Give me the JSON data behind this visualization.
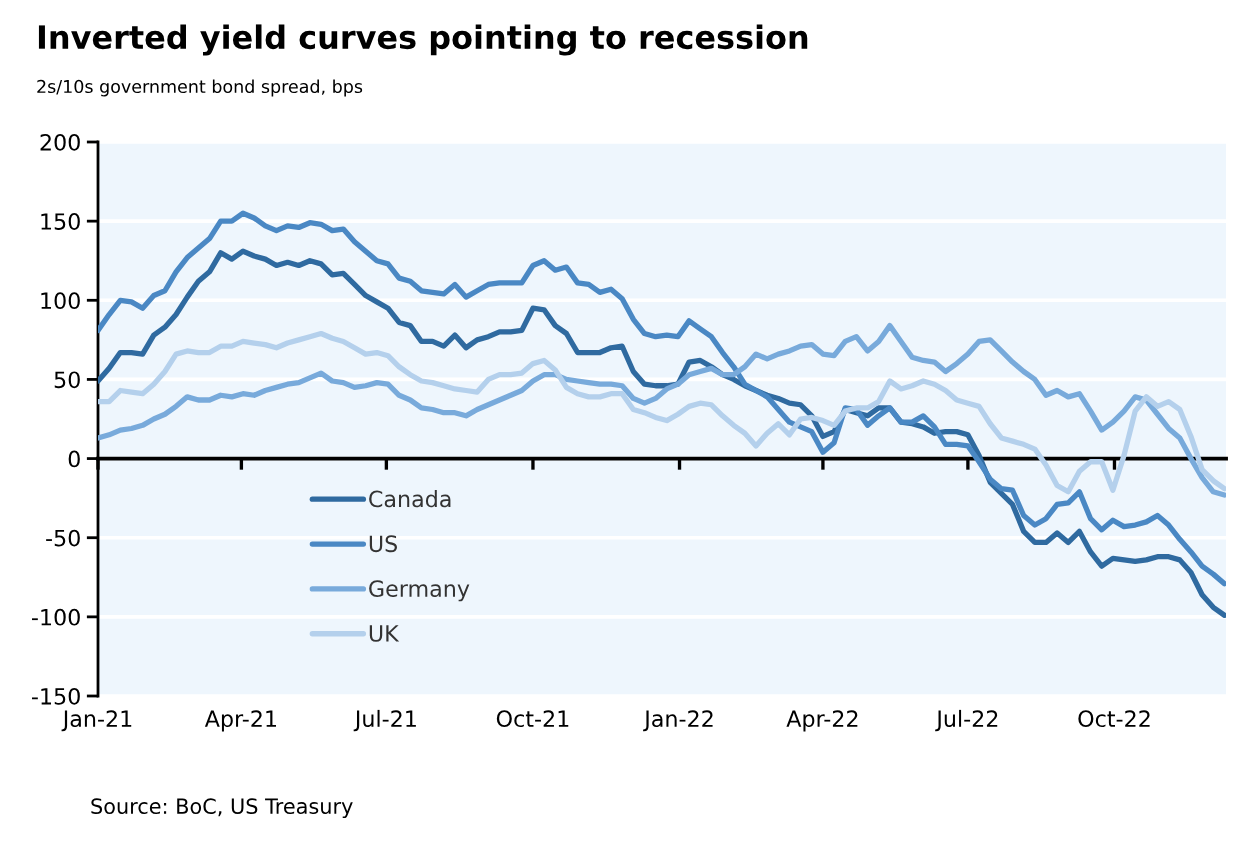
{
  "chart_data": {
    "type": "line",
    "title": "Inverted yield curves pointing to recession",
    "subtitle": "2s/10s government bond spread, bps",
    "annotations": [
      "Source: BoC, US Treasury"
    ],
    "x": [
      "2021-01-01",
      "2021-01-08",
      "2021-01-15",
      "2021-01-22",
      "2021-01-29",
      "2021-02-05",
      "2021-02-12",
      "2021-02-19",
      "2021-02-26",
      "2021-03-05",
      "2021-03-12",
      "2021-03-19",
      "2021-03-26",
      "2021-04-02",
      "2021-04-09",
      "2021-04-16",
      "2021-04-23",
      "2021-04-30",
      "2021-05-07",
      "2021-05-14",
      "2021-05-21",
      "2021-05-28",
      "2021-06-04",
      "2021-06-11",
      "2021-06-18",
      "2021-06-25",
      "2021-07-02",
      "2021-07-09",
      "2021-07-16",
      "2021-07-23",
      "2021-07-30",
      "2021-08-06",
      "2021-08-13",
      "2021-08-20",
      "2021-08-27",
      "2021-09-03",
      "2021-09-10",
      "2021-09-17",
      "2021-09-24",
      "2021-10-01",
      "2021-10-08",
      "2021-10-15",
      "2021-10-22",
      "2021-10-29",
      "2021-11-05",
      "2021-11-12",
      "2021-11-19",
      "2021-11-26",
      "2021-12-03",
      "2021-12-10",
      "2021-12-17",
      "2021-12-24",
      "2021-12-31",
      "2022-01-07",
      "2022-01-14",
      "2022-01-21",
      "2022-01-28",
      "2022-02-04",
      "2022-02-11",
      "2022-02-18",
      "2022-02-25",
      "2022-03-04",
      "2022-03-11",
      "2022-03-18",
      "2022-03-25",
      "2022-04-01",
      "2022-04-08",
      "2022-04-15",
      "2022-04-22",
      "2022-04-29",
      "2022-05-06",
      "2022-05-13",
      "2022-05-20",
      "2022-05-27",
      "2022-06-03",
      "2022-06-10",
      "2022-06-17",
      "2022-06-24",
      "2022-07-01",
      "2022-07-08",
      "2022-07-15",
      "2022-07-22",
      "2022-07-29",
      "2022-08-05",
      "2022-08-12",
      "2022-08-19",
      "2022-08-26",
      "2022-09-02",
      "2022-09-09",
      "2022-09-16",
      "2022-09-23",
      "2022-09-30",
      "2022-10-07",
      "2022-10-14",
      "2022-10-21",
      "2022-10-28",
      "2022-11-04",
      "2022-11-11",
      "2022-11-18",
      "2022-11-25",
      "2022-12-02",
      "2022-12-09"
    ],
    "series": [
      {
        "name": "Canada",
        "color": "#2f6aa0",
        "values": [
          49,
          57,
          67,
          67,
          66,
          78,
          83,
          91,
          102,
          112,
          118,
          130,
          126,
          131,
          128,
          126,
          122,
          124,
          122,
          125,
          123,
          116,
          117,
          110,
          103,
          99,
          95,
          86,
          84,
          74,
          74,
          71,
          78,
          70,
          75,
          77,
          80,
          80,
          81,
          95,
          94,
          84,
          79,
          67,
          67,
          67,
          70,
          71,
          55,
          47,
          46,
          46,
          47,
          61,
          62,
          58,
          53,
          50,
          46,
          43,
          40,
          38,
          35,
          34,
          27,
          14,
          17,
          31,
          29,
          27,
          32,
          32,
          23,
          22,
          20,
          16,
          17,
          17,
          15,
          2,
          -15,
          -22,
          -29,
          -46,
          -53,
          -53,
          -47,
          -53,
          -46,
          -59,
          -68,
          -63,
          -64,
          -65,
          -64,
          -62,
          -62,
          -64,
          -72,
          -86,
          -94,
          -99
        ]
      },
      {
        "name": "US",
        "color": "#4a88c4",
        "values": [
          81,
          91,
          100,
          99,
          95,
          103,
          106,
          118,
          127,
          133,
          139,
          150,
          150,
          155,
          152,
          147,
          144,
          147,
          146,
          149,
          148,
          144,
          145,
          137,
          131,
          125,
          123,
          114,
          112,
          106,
          105,
          104,
          110,
          102,
          106,
          110,
          111,
          111,
          111,
          122,
          125,
          119,
          121,
          111,
          110,
          105,
          107,
          101,
          88,
          79,
          77,
          78,
          77,
          87,
          82,
          77,
          67,
          58,
          47,
          43,
          39,
          31,
          23,
          20,
          17,
          4,
          10,
          32,
          31,
          21,
          27,
          32,
          23,
          23,
          27,
          20,
          9,
          9,
          8,
          -2,
          -13,
          -19,
          -20,
          -36,
          -42,
          -38,
          -29,
          -28,
          -21,
          -38,
          -45,
          -39,
          -43,
          -42,
          -40,
          -36,
          -42,
          -51,
          -59,
          -68,
          -73,
          -79
        ]
      },
      {
        "name": "Germany",
        "color": "#78aadb",
        "values": [
          13,
          15,
          18,
          19,
          21,
          25,
          28,
          33,
          39,
          37,
          37,
          40,
          39,
          41,
          40,
          43,
          45,
          47,
          48,
          51,
          54,
          49,
          48,
          45,
          46,
          48,
          47,
          40,
          37,
          32,
          31,
          29,
          29,
          27,
          31,
          34,
          37,
          40,
          43,
          49,
          53,
          53,
          50,
          49,
          48,
          47,
          47,
          46,
          38,
          35,
          38,
          44,
          47,
          53,
          55,
          57,
          53,
          53,
          58,
          66,
          63,
          66,
          68,
          71,
          72,
          66,
          65,
          74,
          77,
          68,
          74,
          84,
          74,
          64,
          62,
          61,
          55,
          60,
          66,
          74,
          75,
          68,
          61,
          55,
          50,
          40,
          43,
          39,
          41,
          30,
          18,
          23,
          30,
          39,
          37,
          28,
          19,
          13,
          0,
          -12,
          -21,
          -23
        ]
      },
      {
        "name": "UK",
        "color": "#b4d0ec",
        "values": [
          36,
          36,
          43,
          42,
          41,
          47,
          55,
          66,
          68,
          67,
          67,
          71,
          71,
          74,
          73,
          72,
          70,
          73,
          75,
          77,
          79,
          76,
          74,
          70,
          66,
          67,
          65,
          58,
          53,
          49,
          48,
          46,
          44,
          43,
          42,
          50,
          53,
          53,
          54,
          60,
          62,
          56,
          45,
          41,
          39,
          39,
          41,
          41,
          31,
          29,
          26,
          24,
          28,
          33,
          35,
          34,
          27,
          21,
          16,
          8,
          16,
          22,
          15,
          25,
          26,
          24,
          21,
          30,
          32,
          32,
          36,
          49,
          44,
          46,
          49,
          47,
          43,
          37,
          35,
          33,
          22,
          13,
          11,
          9,
          6,
          -4,
          -17,
          -21,
          -8,
          -2,
          -2,
          -20,
          2,
          30,
          39,
          33,
          36,
          31,
          14,
          -7,
          -14,
          -19
        ]
      }
    ],
    "xlim": [
      "2021-01-01",
      "2022-12-10"
    ],
    "xticks": [
      {
        "value": "2021-01-01",
        "label": "Jan-21"
      },
      {
        "value": "2021-04-01",
        "label": "Apr-21"
      },
      {
        "value": "2021-07-01",
        "label": "Jul-21"
      },
      {
        "value": "2021-10-01",
        "label": "Oct-21"
      },
      {
        "value": "2022-01-01",
        "label": "Jan-22"
      },
      {
        "value": "2022-04-01",
        "label": "Apr-22"
      },
      {
        "value": "2022-07-01",
        "label": "Jul-22"
      },
      {
        "value": "2022-10-01",
        "label": "Oct-22"
      }
    ],
    "ylim": [
      -150,
      200
    ],
    "yticks": [
      -150,
      -100,
      -50,
      0,
      50,
      100,
      150,
      200
    ],
    "ref_lines": [
      {
        "axis": "y",
        "value": 0,
        "color": "#000000"
      }
    ],
    "grid": "y",
    "legend": "bottom left"
  }
}
